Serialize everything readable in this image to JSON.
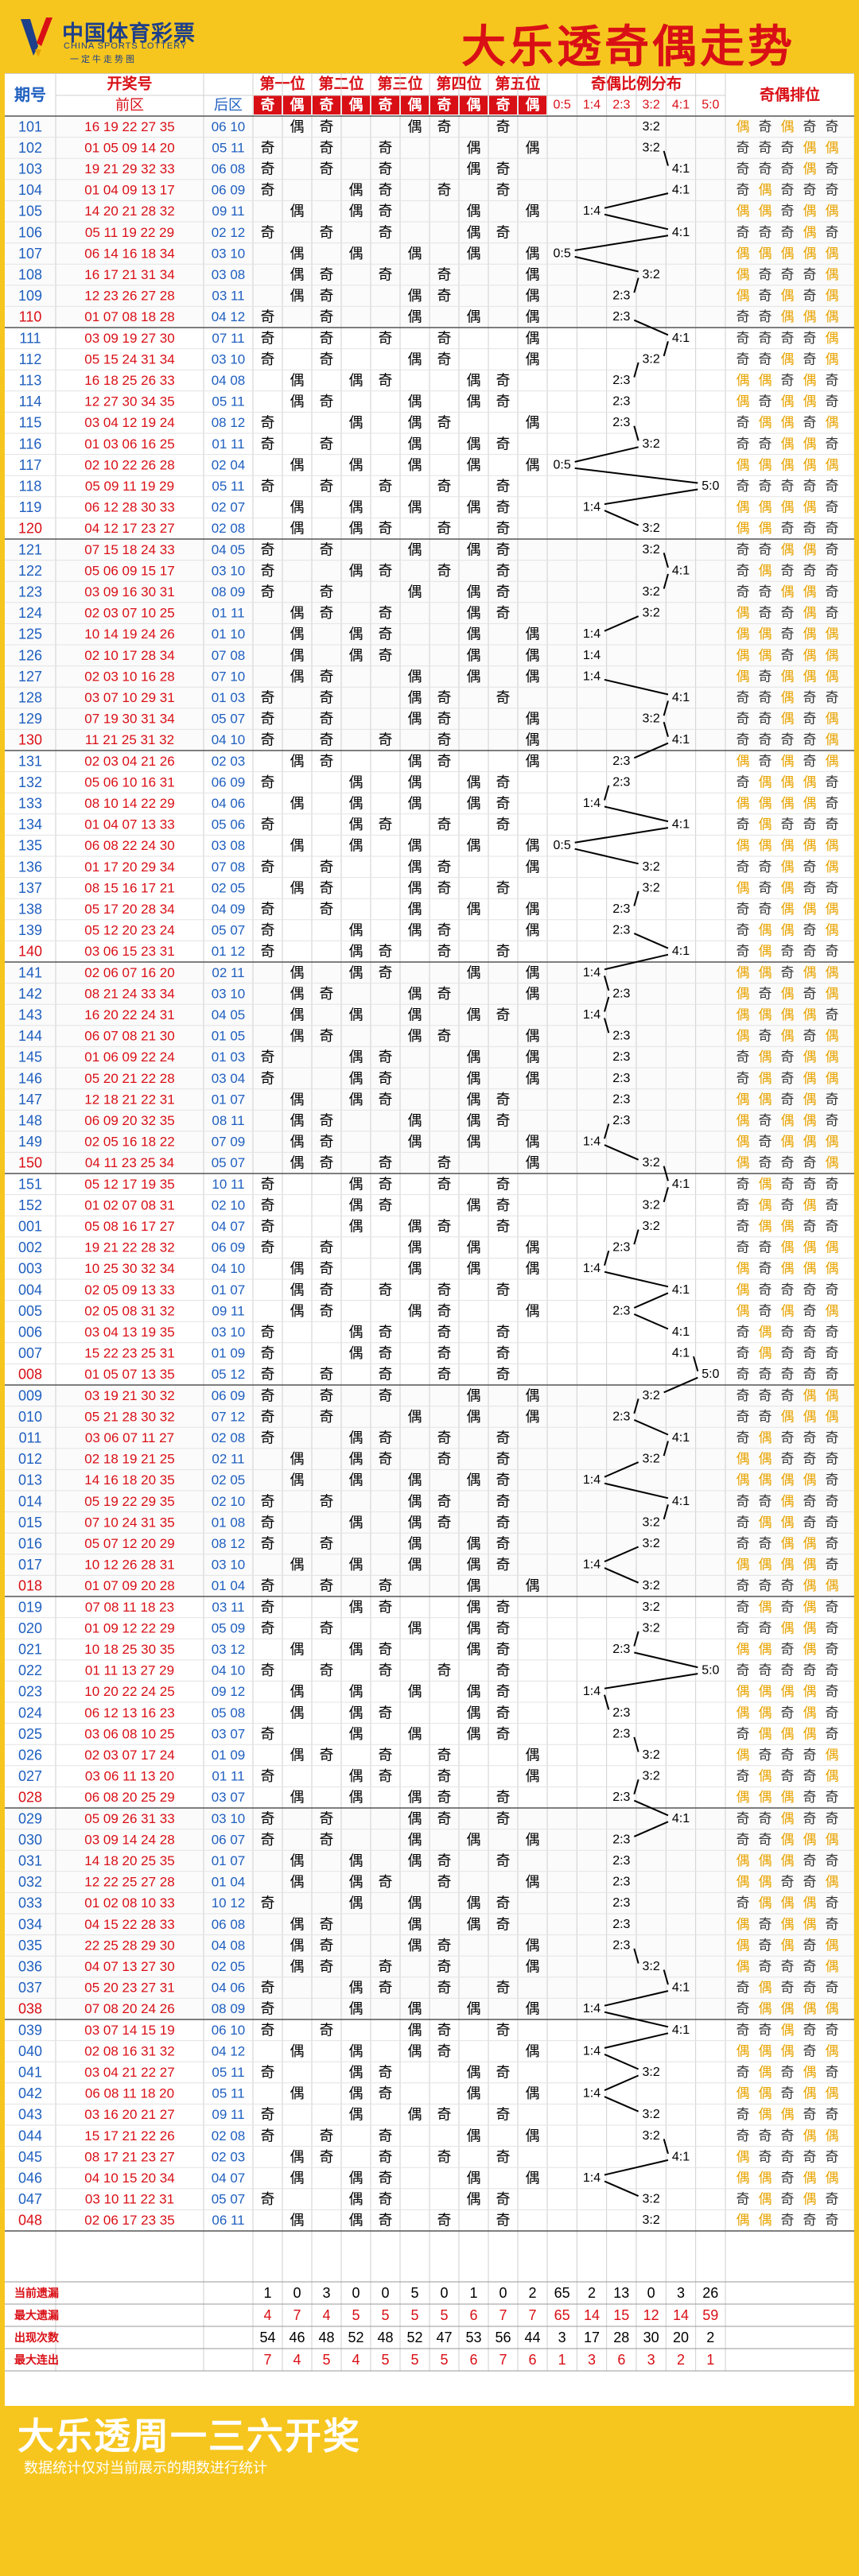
{
  "header": {
    "logo_cn": "中国体育彩票",
    "logo_en": "CHINA SPORTS LOTTERY",
    "logo_slogan": "一定牛走势图",
    "title": "大乐透奇偶走势"
  },
  "table": {
    "col_period": "期号",
    "col_draw": "开奖号",
    "col_front": "前区",
    "col_back": "后区",
    "positions": [
      "第一位",
      "第二位",
      "第三位",
      "第四位",
      "第五位"
    ],
    "odd": "奇",
    "even": "偶",
    "ratio_header": "奇偶比例分布",
    "ratios": [
      "0:5",
      "1:4",
      "2:3",
      "3:2",
      "4:1",
      "5:0"
    ],
    "order_header": "奇偶排位",
    "colors": {
      "red": "#d90f16",
      "blue": "#1f5fbf",
      "odd_order": "#333333",
      "even_order": "#e8a300",
      "grid": "#cfcfcf"
    }
  },
  "rows": [
    {
      "p": "101",
      "f": "16 19 22 27 35",
      "b": "06 10",
      "red": false
    },
    {
      "p": "102",
      "f": "01 05 09 14 20",
      "b": "05 11",
      "red": false
    },
    {
      "p": "103",
      "f": "19 21 29 32 33",
      "b": "06 08",
      "red": false
    },
    {
      "p": "104",
      "f": "01 04 09 13 17",
      "b": "06 09",
      "red": false
    },
    {
      "p": "105",
      "f": "14 20 21 28 32",
      "b": "09 11",
      "red": false
    },
    {
      "p": "106",
      "f": "05 11 19 22 29",
      "b": "02 12",
      "red": false
    },
    {
      "p": "107",
      "f": "06 14 16 18 34",
      "b": "03 10",
      "red": false
    },
    {
      "p": "108",
      "f": "16 17 21 31 34",
      "b": "03 08",
      "red": false
    },
    {
      "p": "109",
      "f": "12 23 26 27 28",
      "b": "03 11",
      "red": false
    },
    {
      "p": "110",
      "f": "01 07 08 18 28",
      "b": "04 12",
      "red": true
    },
    {
      "p": "111",
      "f": "03 09 19 27 30",
      "b": "07 11",
      "red": false
    },
    {
      "p": "112",
      "f": "05 15 24 31 34",
      "b": "03 10",
      "red": false
    },
    {
      "p": "113",
      "f": "16 18 25 26 33",
      "b": "04 08",
      "red": false
    },
    {
      "p": "114",
      "f": "12 27 30 34 35",
      "b": "05 11",
      "red": false
    },
    {
      "p": "115",
      "f": "03 04 12 19 24",
      "b": "08 12",
      "red": false
    },
    {
      "p": "116",
      "f": "01 03 06 16 25",
      "b": "01 11",
      "red": false
    },
    {
      "p": "117",
      "f": "02 10 22 26 28",
      "b": "02 04",
      "red": false
    },
    {
      "p": "118",
      "f": "05 09 11 19 29",
      "b": "05 11",
      "red": false
    },
    {
      "p": "119",
      "f": "06 12 28 30 33",
      "b": "02 07",
      "red": false
    },
    {
      "p": "120",
      "f": "04 12 17 23 27",
      "b": "02 08",
      "red": true
    },
    {
      "p": "121",
      "f": "07 15 18 24 33",
      "b": "04 05",
      "red": false
    },
    {
      "p": "122",
      "f": "05 06 09 15 17",
      "b": "03 10",
      "red": false
    },
    {
      "p": "123",
      "f": "03 09 16 30 31",
      "b": "08 09",
      "red": false
    },
    {
      "p": "124",
      "f": "02 03 07 10 25",
      "b": "01 11",
      "red": false
    },
    {
      "p": "125",
      "f": "10 14 19 24 26",
      "b": "01 10",
      "red": false
    },
    {
      "p": "126",
      "f": "02 10 17 28 34",
      "b": "07 08",
      "red": false
    },
    {
      "p": "127",
      "f": "02 03 10 16 28",
      "b": "07 10",
      "red": false
    },
    {
      "p": "128",
      "f": "03 07 10 29 31",
      "b": "01 03",
      "red": false
    },
    {
      "p": "129",
      "f": "07 19 30 31 34",
      "b": "05 07",
      "red": false
    },
    {
      "p": "130",
      "f": "11 21 25 31 32",
      "b": "04 10",
      "red": true
    },
    {
      "p": "131",
      "f": "02 03 04 21 26",
      "b": "02 03",
      "red": false
    },
    {
      "p": "132",
      "f": "05 06 10 16 31",
      "b": "06 09",
      "red": false
    },
    {
      "p": "133",
      "f": "08 10 14 22 29",
      "b": "04 06",
      "red": false
    },
    {
      "p": "134",
      "f": "01 04 07 13 33",
      "b": "05 06",
      "red": false
    },
    {
      "p": "135",
      "f": "06 08 22 24 30",
      "b": "03 08",
      "red": false
    },
    {
      "p": "136",
      "f": "01 17 20 29 34",
      "b": "07 08",
      "red": false
    },
    {
      "p": "137",
      "f": "08 15 16 17 21",
      "b": "02 05",
      "red": false
    },
    {
      "p": "138",
      "f": "05 17 20 28 34",
      "b": "04 09",
      "red": false
    },
    {
      "p": "139",
      "f": "05 12 20 23 24",
      "b": "05 07",
      "red": false
    },
    {
      "p": "140",
      "f": "03 06 15 23 31",
      "b": "01 12",
      "red": true
    },
    {
      "p": "141",
      "f": "02 06 07 16 20",
      "b": "02 11",
      "red": false
    },
    {
      "p": "142",
      "f": "08 21 24 33 34",
      "b": "03 10",
      "red": false
    },
    {
      "p": "143",
      "f": "16 20 22 24 31",
      "b": "04 05",
      "red": false
    },
    {
      "p": "144",
      "f": "06 07 08 21 30",
      "b": "01 05",
      "red": false
    },
    {
      "p": "145",
      "f": "01 06 09 22 24",
      "b": "01 03",
      "red": false
    },
    {
      "p": "146",
      "f": "05 20 21 22 28",
      "b": "03 04",
      "red": false
    },
    {
      "p": "147",
      "f": "12 18 21 22 31",
      "b": "01 07",
      "red": false
    },
    {
      "p": "148",
      "f": "06 09 20 32 35",
      "b": "08 11",
      "red": false
    },
    {
      "p": "149",
      "f": "02 05 16 18 22",
      "b": "07 09",
      "red": false
    },
    {
      "p": "150",
      "f": "04 11 23 25 34",
      "b": "05 07",
      "red": true
    },
    {
      "p": "151",
      "f": "05 12 17 19 35",
      "b": "10 11",
      "red": false
    },
    {
      "p": "152",
      "f": "01 02 07 08 31",
      "b": "02 10",
      "red": false
    },
    {
      "p": "001",
      "f": "05 08 16 17 27",
      "b": "04 07",
      "red": false
    },
    {
      "p": "002",
      "f": "19 21 22 28 32",
      "b": "06 09",
      "red": false
    },
    {
      "p": "003",
      "f": "10 25 30 32 34",
      "b": "04 10",
      "red": false
    },
    {
      "p": "004",
      "f": "02 05 09 13 33",
      "b": "01 07",
      "red": false
    },
    {
      "p": "005",
      "f": "02 05 08 31 32",
      "b": "09 11",
      "red": false
    },
    {
      "p": "006",
      "f": "03 04 13 19 35",
      "b": "03 10",
      "red": false
    },
    {
      "p": "007",
      "f": "15 22 23 25 31",
      "b": "01 09",
      "red": false
    },
    {
      "p": "008",
      "f": "01 05 07 13 35",
      "b": "05 12",
      "red": true
    },
    {
      "p": "009",
      "f": "03 19 21 30 32",
      "b": "06 09",
      "red": false
    },
    {
      "p": "010",
      "f": "05 21 28 30 32",
      "b": "07 12",
      "red": false
    },
    {
      "p": "011",
      "f": "03 06 07 11 27",
      "b": "02 08",
      "red": false
    },
    {
      "p": "012",
      "f": "02 18 19 21 25",
      "b": "02 11",
      "red": false
    },
    {
      "p": "013",
      "f": "14 16 18 20 35",
      "b": "02 05",
      "red": false
    },
    {
      "p": "014",
      "f": "05 19 22 29 35",
      "b": "02 10",
      "red": false
    },
    {
      "p": "015",
      "f": "07 10 24 31 35",
      "b": "01 08",
      "red": false
    },
    {
      "p": "016",
      "f": "05 07 12 20 29",
      "b": "08 12",
      "red": false
    },
    {
      "p": "017",
      "f": "10 12 26 28 31",
      "b": "03 10",
      "red": false
    },
    {
      "p": "018",
      "f": "01 07 09 20 28",
      "b": "01 04",
      "red": true
    },
    {
      "p": "019",
      "f": "07 08 11 18 23",
      "b": "03 11",
      "red": false
    },
    {
      "p": "020",
      "f": "01 09 12 22 29",
      "b": "05 09",
      "red": false
    },
    {
      "p": "021",
      "f": "10 18 25 30 35",
      "b": "03 12",
      "red": false
    },
    {
      "p": "022",
      "f": "01 11 13 27 29",
      "b": "04 10",
      "red": false
    },
    {
      "p": "023",
      "f": "10 20 22 24 25",
      "b": "09 12",
      "red": false
    },
    {
      "p": "024",
      "f": "06 12 13 16 23",
      "b": "05 08",
      "red": false
    },
    {
      "p": "025",
      "f": "03 06 08 10 25",
      "b": "03 07",
      "red": false
    },
    {
      "p": "026",
      "f": "02 03 07 17 24",
      "b": "01 09",
      "red": false
    },
    {
      "p": "027",
      "f": "03 06 11 13 20",
      "b": "01 11",
      "red": false
    },
    {
      "p": "028",
      "f": "06 08 20 25 29",
      "b": "03 07",
      "red": true
    },
    {
      "p": "029",
      "f": "05 09 26 31 33",
      "b": "03 10",
      "red": false
    },
    {
      "p": "030",
      "f": "03 09 14 24 28",
      "b": "06 07",
      "red": false
    },
    {
      "p": "031",
      "f": "14 18 20 25 35",
      "b": "01 07",
      "red": false
    },
    {
      "p": "032",
      "f": "12 22 25 27 28",
      "b": "01 04",
      "red": false
    },
    {
      "p": "033",
      "f": "01 02 08 10 33",
      "b": "10 12",
      "red": false
    },
    {
      "p": "034",
      "f": "04 15 22 28 33",
      "b": "06 08",
      "red": false
    },
    {
      "p": "035",
      "f": "22 25 28 29 30",
      "b": "04 08",
      "red": false
    },
    {
      "p": "036",
      "f": "04 07 13 27 30",
      "b": "02 05",
      "red": false
    },
    {
      "p": "037",
      "f": "05 20 23 27 31",
      "b": "04 06",
      "red": false
    },
    {
      "p": "038",
      "f": "07 08 20 24 26",
      "b": "08 09",
      "red": true
    },
    {
      "p": "039",
      "f": "03 07 14 15 19",
      "b": "06 10",
      "red": false
    },
    {
      "p": "040",
      "f": "02 08 16 31 32",
      "b": "04 12",
      "red": false
    },
    {
      "p": "041",
      "f": "03 04 21 22 27",
      "b": "05 11",
      "red": false
    },
    {
      "p": "042",
      "f": "06 08 11 18 20",
      "b": "05 11",
      "red": false
    },
    {
      "p": "043",
      "f": "03 16 20 21 27",
      "b": "09 11",
      "red": false
    },
    {
      "p": "044",
      "f": "15 17 21 22 26",
      "b": "02 08",
      "red": false
    },
    {
      "p": "045",
      "f": "08 17 21 23 27",
      "b": "02 03",
      "red": false
    },
    {
      "p": "046",
      "f": "04 10 15 20 34",
      "b": "04 07",
      "red": false
    },
    {
      "p": "047",
      "f": "03 10 11 22 31",
      "b": "05 07",
      "red": false
    },
    {
      "p": "048",
      "f": "02 06 17 23 35",
      "b": "06 11",
      "red": true
    }
  ],
  "stats": [
    {
      "label": "当前遗漏",
      "color": "#000000",
      "values": [
        "1",
        "0",
        "3",
        "0",
        "0",
        "5",
        "0",
        "1",
        "0",
        "2",
        "65",
        "2",
        "13",
        "0",
        "3",
        "26"
      ]
    },
    {
      "label": "最大遗漏",
      "color": "#d90f16",
      "values": [
        "4",
        "7",
        "4",
        "5",
        "5",
        "5",
        "5",
        "6",
        "7",
        "7",
        "65",
        "14",
        "15",
        "12",
        "14",
        "59"
      ]
    },
    {
      "label": "出现次数",
      "color": "#000000",
      "values": [
        "54",
        "46",
        "48",
        "52",
        "48",
        "52",
        "47",
        "53",
        "56",
        "44",
        "3",
        "17",
        "28",
        "30",
        "20",
        "2"
      ]
    },
    {
      "label": "最大连出",
      "color": "#d90f16",
      "values": [
        "7",
        "4",
        "5",
        "4",
        "5",
        "5",
        "5",
        "6",
        "7",
        "6",
        "1",
        "3",
        "6",
        "3",
        "2",
        "1"
      ]
    }
  ],
  "footer": {
    "title": "大乐透周一三六开奖",
    "note": "数据统计仅对当前展示的期数进行统计"
  }
}
